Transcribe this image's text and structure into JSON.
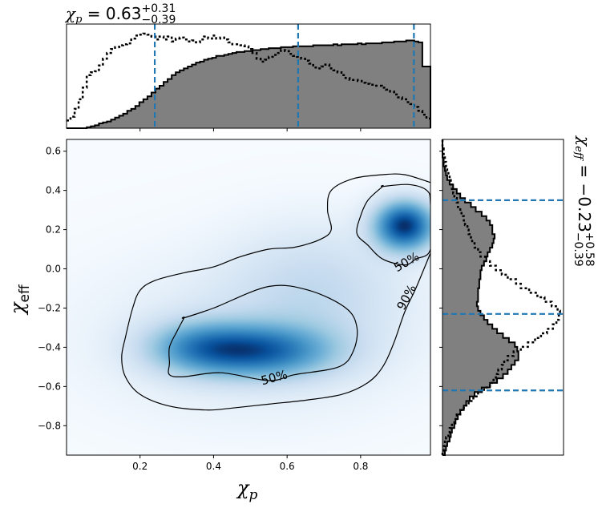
{
  "chart_data": {
    "type": "heatmap",
    "subtype": "corner-plot (2D posterior density with marginal histograms)",
    "title_top": {
      "symbol": "χ",
      "symbol_sub": "p",
      "equals": " = 0.63",
      "sup": "+0.31",
      "sub": "−0.39"
    },
    "title_right": {
      "symbol": "χ",
      "symbol_sub": "eff",
      "equals": " = −0.23",
      "sup": "+0.58",
      "sub": "−0.39"
    },
    "xlabel": {
      "symbol": "χ",
      "sub": "p"
    },
    "ylabel": {
      "symbol": "χ",
      "sub": "eff"
    },
    "xlim": [
      0.0,
      0.99
    ],
    "ylim": [
      -0.95,
      0.66
    ],
    "xticks": [
      {
        "value": 0.2,
        "label": "0.2"
      },
      {
        "value": 0.4,
        "label": "0.4"
      },
      {
        "value": 0.6,
        "label": "0.6"
      },
      {
        "value": 0.8,
        "label": "0.8"
      }
    ],
    "yticks": [
      {
        "value": 0.6,
        "label": "0.6"
      },
      {
        "value": 0.4,
        "label": "0.4"
      },
      {
        "value": 0.2,
        "label": "0.2"
      },
      {
        "value": 0.0,
        "label": "0.0"
      },
      {
        "value": -0.2,
        "label": "−0.2"
      },
      {
        "value": -0.4,
        "label": "−0.4"
      },
      {
        "value": -0.6,
        "label": "−0.6"
      },
      {
        "value": -0.8,
        "label": "−0.8"
      }
    ],
    "colormap": "Blues",
    "density_blobs": [
      {
        "cx": 0.92,
        "cy": 0.22,
        "sx": 0.055,
        "sy": 0.085,
        "amp": 1.0
      },
      {
        "cx": 0.53,
        "cy": -0.42,
        "sx": 0.13,
        "sy": 0.09,
        "amp": 0.72
      },
      {
        "cx": 0.36,
        "cy": -0.4,
        "sx": 0.1,
        "sy": 0.09,
        "amp": 0.45
      },
      {
        "cx": 0.68,
        "cy": -0.1,
        "sx": 0.16,
        "sy": 0.22,
        "amp": 0.16
      },
      {
        "cx": 0.5,
        "cy": -0.35,
        "sx": 0.3,
        "sy": 0.28,
        "amp": 0.1
      }
    ],
    "contours": [
      {
        "label": "50%",
        "points": [
          [
            0.86,
            0.42
          ],
          [
            0.93,
            0.43
          ],
          [
            0.98,
            0.4
          ],
          [
            0.99,
            0.33
          ],
          [
            0.99,
            0.1
          ],
          [
            0.95,
            0.05
          ],
          [
            0.92,
            0.02
          ],
          [
            0.86,
            0.05
          ],
          [
            0.82,
            0.12
          ],
          [
            0.79,
            0.18
          ],
          [
            0.8,
            0.27
          ],
          [
            0.82,
            0.35
          ],
          [
            0.86,
            0.42
          ]
        ]
      },
      {
        "label": "50%",
        "points": [
          [
            0.32,
            -0.25
          ],
          [
            0.4,
            -0.2
          ],
          [
            0.55,
            -0.09
          ],
          [
            0.66,
            -0.11
          ],
          [
            0.76,
            -0.2
          ],
          [
            0.79,
            -0.3
          ],
          [
            0.78,
            -0.42
          ],
          [
            0.74,
            -0.5
          ],
          [
            0.62,
            -0.54
          ],
          [
            0.55,
            -0.57
          ],
          [
            0.42,
            -0.53
          ],
          [
            0.32,
            -0.55
          ],
          [
            0.28,
            -0.54
          ],
          [
            0.28,
            -0.48
          ],
          [
            0.28,
            -0.4
          ],
          [
            0.3,
            -0.32
          ],
          [
            0.32,
            -0.25
          ]
        ]
      },
      {
        "label": "90%",
        "points": [
          [
            0.99,
            0.44
          ],
          [
            0.92,
            0.48
          ],
          [
            0.86,
            0.48
          ],
          [
            0.78,
            0.46
          ],
          [
            0.72,
            0.4
          ],
          [
            0.71,
            0.3
          ],
          [
            0.72,
            0.2
          ],
          [
            0.69,
            0.15
          ],
          [
            0.62,
            0.11
          ],
          [
            0.55,
            0.1
          ],
          [
            0.47,
            0.06
          ],
          [
            0.4,
            0.01
          ],
          [
            0.32,
            -0.02
          ],
          [
            0.24,
            -0.06
          ],
          [
            0.2,
            -0.11
          ],
          [
            0.18,
            -0.2
          ],
          [
            0.16,
            -0.35
          ],
          [
            0.15,
            -0.45
          ],
          [
            0.16,
            -0.55
          ],
          [
            0.2,
            -0.64
          ],
          [
            0.28,
            -0.7
          ],
          [
            0.38,
            -0.72
          ],
          [
            0.45,
            -0.71
          ],
          [
            0.55,
            -0.69
          ],
          [
            0.65,
            -0.67
          ],
          [
            0.75,
            -0.64
          ],
          [
            0.82,
            -0.58
          ],
          [
            0.86,
            -0.5
          ],
          [
            0.89,
            -0.38
          ],
          [
            0.92,
            -0.22
          ],
          [
            0.95,
            -0.1
          ],
          [
            0.99,
            0.08
          ]
        ]
      }
    ],
    "contour_labels": [
      {
        "text": "50%",
        "x": 0.925,
        "y": 0.035,
        "angle": -30
      },
      {
        "text": "50%",
        "x": 0.565,
        "y": -0.555,
        "angle": -15
      },
      {
        "text": "90%",
        "x": 0.925,
        "y": -0.145,
        "angle": -62
      }
    ],
    "top_hist": {
      "x_edges_start": 0.0,
      "x_edges_end": 0.99,
      "bins": 90,
      "ymax": 1.0,
      "filled_values": [
        0.0,
        0.0,
        0.0,
        0.0,
        0.0,
        0.01,
        0.02,
        0.03,
        0.05,
        0.06,
        0.07,
        0.09,
        0.11,
        0.13,
        0.15,
        0.18,
        0.2,
        0.23,
        0.27,
        0.3,
        0.33,
        0.37,
        0.41,
        0.44,
        0.48,
        0.51,
        0.55,
        0.58,
        0.6,
        0.62,
        0.64,
        0.66,
        0.68,
        0.69,
        0.71,
        0.72,
        0.73,
        0.75,
        0.75,
        0.76,
        0.77,
        0.78,
        0.79,
        0.79,
        0.8,
        0.8,
        0.81,
        0.81,
        0.82,
        0.82,
        0.83,
        0.83,
        0.83,
        0.84,
        0.84,
        0.84,
        0.85,
        0.85,
        0.85,
        0.85,
        0.85,
        0.86,
        0.86,
        0.86,
        0.86,
        0.86,
        0.87,
        0.86,
        0.87,
        0.87,
        0.87,
        0.87,
        0.88,
        0.87,
        0.88,
        0.88,
        0.88,
        0.88,
        0.89,
        0.89,
        0.89,
        0.9,
        0.9,
        0.9,
        0.91,
        0.91,
        0.9,
        0.89,
        0.64,
        0.64
      ],
      "dotted_values": [
        0.08,
        0.12,
        0.2,
        0.3,
        0.42,
        0.55,
        0.58,
        0.59,
        0.65,
        0.72,
        0.78,
        0.82,
        0.84,
        0.86,
        0.87,
        0.88,
        0.93,
        0.96,
        0.97,
        0.98,
        0.97,
        0.95,
        0.92,
        0.95,
        0.92,
        0.95,
        0.9,
        0.93,
        0.94,
        0.92,
        0.9,
        0.91,
        0.89,
        0.92,
        0.95,
        0.93,
        0.96,
        0.93,
        0.94,
        0.92,
        0.89,
        0.87,
        0.87,
        0.86,
        0.85,
        0.82,
        0.78,
        0.72,
        0.69,
        0.71,
        0.74,
        0.76,
        0.78,
        0.81,
        0.8,
        0.77,
        0.75,
        0.74,
        0.72,
        0.7,
        0.67,
        0.63,
        0.62,
        0.64,
        0.66,
        0.62,
        0.6,
        0.58,
        0.55,
        0.52,
        0.5,
        0.5,
        0.49,
        0.47,
        0.46,
        0.45,
        0.44,
        0.44,
        0.42,
        0.4,
        0.38,
        0.35,
        0.32,
        0.3,
        0.27,
        0.25,
        0.22,
        0.18,
        0.14,
        0.1
      ],
      "quantile_lines": [
        0.24,
        0.63,
        0.945
      ]
    },
    "right_hist": {
      "y_edges_start": -0.95,
      "y_edges_end": 0.66,
      "bins": 70,
      "xmax": 1.0,
      "filled_values": [
        0.02,
        0.03,
        0.04,
        0.06,
        0.07,
        0.08,
        0.1,
        0.11,
        0.13,
        0.15,
        0.18,
        0.2,
        0.23,
        0.27,
        0.33,
        0.4,
        0.46,
        0.51,
        0.55,
        0.58,
        0.61,
        0.64,
        0.64,
        0.63,
        0.61,
        0.56,
        0.51,
        0.46,
        0.42,
        0.38,
        0.35,
        0.32,
        0.3,
        0.29,
        0.3,
        0.3,
        0.3,
        0.31,
        0.31,
        0.32,
        0.32,
        0.33,
        0.35,
        0.37,
        0.38,
        0.4,
        0.42,
        0.43,
        0.44,
        0.42,
        0.42,
        0.4,
        0.37,
        0.33,
        0.28,
        0.24,
        0.19,
        0.15,
        0.12,
        0.09,
        0.06,
        0.04,
        0.03,
        0.02,
        0.01,
        0.01,
        0.0,
        0.0,
        0.0,
        0.0
      ],
      "dotted_values": [
        0.0,
        0.01,
        0.02,
        0.03,
        0.05,
        0.06,
        0.08,
        0.1,
        0.12,
        0.15,
        0.18,
        0.22,
        0.26,
        0.3,
        0.35,
        0.4,
        0.43,
        0.45,
        0.47,
        0.5,
        0.52,
        0.55,
        0.6,
        0.66,
        0.72,
        0.78,
        0.83,
        0.88,
        0.93,
        0.96,
        0.98,
        0.99,
        0.97,
        0.92,
        0.86,
        0.8,
        0.73,
        0.66,
        0.62,
        0.55,
        0.5,
        0.45,
        0.4,
        0.36,
        0.32,
        0.3,
        0.27,
        0.25,
        0.24,
        0.22,
        0.21,
        0.19,
        0.18,
        0.16,
        0.15,
        0.13,
        0.12,
        0.1,
        0.09,
        0.08,
        0.07,
        0.06,
        0.05,
        0.04,
        0.03,
        0.02,
        0.01,
        0.01,
        0.0,
        0.0
      ],
      "quantile_lines": [
        -0.62,
        -0.23,
        0.35
      ]
    },
    "colors": {
      "hist_fill": "#808080",
      "hist_edge": "#000000",
      "quantile_line": "#1f77b4",
      "contour": "#000000",
      "axes": "#000000"
    }
  }
}
